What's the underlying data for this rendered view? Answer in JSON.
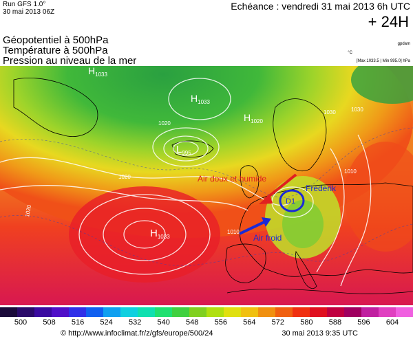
{
  "header": {
    "run": "Run GFS 1.0°",
    "run_date": "30 mai 2013 06Z",
    "echeance": "Echéance : vendredi 31 mai 2013 6h UTC",
    "lead": "+ 24H",
    "titles": [
      "Géopotentiel à 500hPa",
      "Température à 500hPa",
      "Pression au niveau de la mer"
    ],
    "unit_gpdam": "gpdam",
    "unit_c": "°C",
    "maxmin": "[Max 1033.5 | Min 995.0] hPa"
  },
  "map_labels": {
    "h1": "H",
    "h1_sub": "1033",
    "h2": "H",
    "h2_sub": "1033",
    "h3": "H",
    "h3_sub": "1020",
    "h4": "H",
    "h4_sub": "1033",
    "l1": "L",
    "l1_sub": "995",
    "d1": "D1",
    "iso_1030a": "1030",
    "iso_1020a": "1020",
    "iso_1020b": "1020",
    "iso_1010a": "1010",
    "iso_1010b": "1010",
    "iso_1020c": "1020",
    "iso_1030b": "1030",
    "annot_warm": "Air doux et humide",
    "annot_cold": "Air froid",
    "annot_name": "Frederik"
  },
  "scale": {
    "ticks": [
      "500",
      "508",
      "516",
      "524",
      "532",
      "540",
      "548",
      "556",
      "564",
      "572",
      "580",
      "588",
      "596",
      "604"
    ],
    "colors": [
      "#1a0a3a",
      "#2a0a6a",
      "#3a0aa0",
      "#5010c8",
      "#3030e8",
      "#1060f0",
      "#10a0f0",
      "#10d0e0",
      "#10e0b0",
      "#20e070",
      "#40d040",
      "#80d020",
      "#b0e010",
      "#e0e010",
      "#f0c010",
      "#f09010",
      "#f06010",
      "#f03010",
      "#e01020",
      "#c00040",
      "#a00060",
      "#c020a0",
      "#e040c0",
      "#f060e0"
    ]
  },
  "footer": {
    "url": "http://www.infoclimat.fr/z/gfs/europe/500/24",
    "copyright": "©",
    "date": "30 mai 2013  9:35 UTC"
  },
  "colors": {
    "annot_red": "#e02020",
    "annot_blue": "#1a2ad8"
  }
}
